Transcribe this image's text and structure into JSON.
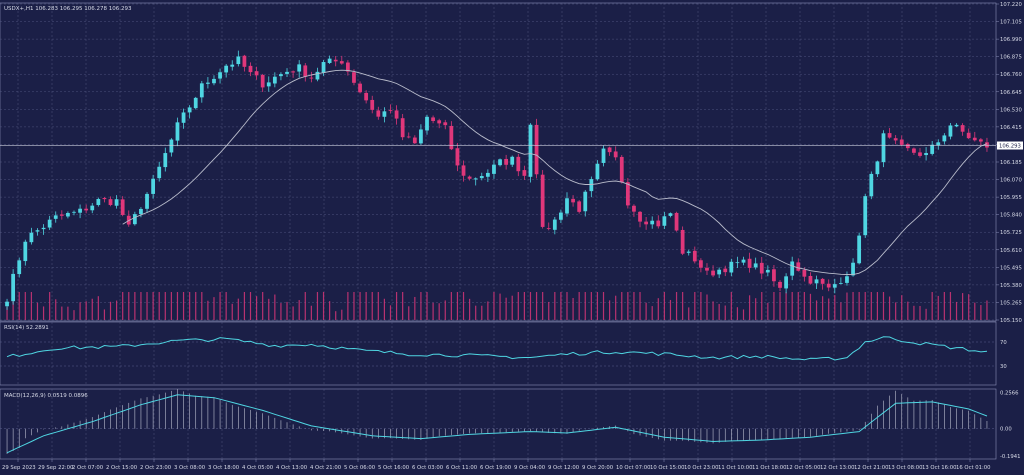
{
  "chart_data": {
    "type": "candlestick",
    "symbol_header": "USDX+,H1  106.283 106.295 106.278 106.293",
    "colors": {
      "background": "#1b1f47",
      "grid": "#5a5f8c",
      "bull": "#4fd6e2",
      "bear": "#e0377a",
      "ma": "#b9bccb",
      "volume": "#e0377a",
      "rsi": "#4fd6e2",
      "macd_signal": "#4fd6e2",
      "macd_hist": "#d8dbe8",
      "price_box": "#ffffff"
    },
    "price_axis": {
      "min": 105.15,
      "max": 107.22,
      "ticks": [
        "107.220",
        "107.105",
        "106.990",
        "106.875",
        "106.760",
        "106.645",
        "106.530",
        "106.415",
        "106.300",
        "106.185",
        "106.070",
        "105.955",
        "105.840",
        "105.725",
        "105.610",
        "105.495",
        "105.380",
        "105.265",
        "105.150"
      ],
      "current": "106.293",
      "current_value": 106.293
    },
    "x_labels": [
      "29 Sep 2023",
      "29 Sep 22:00",
      "2 Oct 07:00",
      "2 Oct 15:00",
      "2 Oct 23:00",
      "3 Oct 08:00",
      "3 Oct 18:00",
      "4 Oct 05:00",
      "4 Oct 13:00",
      "4 Oct 21:00",
      "5 Oct 06:00",
      "5 Oct 16:00",
      "6 Oct 03:00",
      "6 Oct 11:00",
      "6 Oct 19:00",
      "9 Oct 04:00",
      "9 Oct 12:00",
      "9 Oct 20:00",
      "10 Oct 07:00",
      "10 Oct 15:00",
      "10 Oct 23:00",
      "11 Oct 10:00",
      "11 Oct 18:00",
      "12 Oct 05:00",
      "12 Oct 13:00",
      "12 Oct 21:00",
      "13 Oct 08:00",
      "13 Oct 16:00",
      "16 Oct 01:00"
    ],
    "path_points": [
      [
        0,
        105.3
      ],
      [
        3,
        105.68
      ],
      [
        8,
        105.82
      ],
      [
        12,
        105.86
      ],
      [
        15,
        105.93
      ],
      [
        18,
        105.93
      ],
      [
        20,
        105.75
      ],
      [
        24,
        106.05
      ],
      [
        28,
        106.42
      ],
      [
        32,
        106.68
      ],
      [
        36,
        106.82
      ],
      [
        38,
        106.85
      ],
      [
        40,
        106.76
      ],
      [
        42,
        106.7
      ],
      [
        46,
        106.78
      ],
      [
        48,
        106.8
      ],
      [
        50,
        106.74
      ],
      [
        52,
        106.83
      ],
      [
        55,
        106.85
      ],
      [
        58,
        106.65
      ],
      [
        61,
        106.48
      ],
      [
        63,
        106.54
      ],
      [
        65,
        106.35
      ],
      [
        67,
        106.3
      ],
      [
        69,
        106.48
      ],
      [
        72,
        106.4
      ],
      [
        74,
        106.15
      ],
      [
        76,
        106.07
      ],
      [
        79,
        106.12
      ],
      [
        81,
        106.18
      ],
      [
        83,
        106.2
      ],
      [
        85,
        106.1
      ],
      [
        86,
        106.45
      ],
      [
        87,
        106.13
      ],
      [
        88,
        105.73
      ],
      [
        90,
        105.8
      ],
      [
        92,
        105.95
      ],
      [
        94,
        105.88
      ],
      [
        96,
        106.05
      ],
      [
        98,
        106.25
      ],
      [
        100,
        106.2
      ],
      [
        102,
        105.93
      ],
      [
        104,
        105.82
      ],
      [
        107,
        105.78
      ],
      [
        109,
        105.85
      ],
      [
        111,
        105.6
      ],
      [
        113,
        105.55
      ],
      [
        115,
        105.45
      ],
      [
        117,
        105.48
      ],
      [
        120,
        105.52
      ],
      [
        122,
        105.52
      ],
      [
        125,
        105.45
      ],
      [
        127,
        105.35
      ],
      [
        129,
        105.55
      ],
      [
        131,
        105.43
      ],
      [
        133,
        105.4
      ],
      [
        135,
        105.35
      ],
      [
        137,
        105.42
      ],
      [
        139,
        105.5
      ],
      [
        141,
        105.95
      ],
      [
        144,
        106.35
      ],
      [
        147,
        106.27
      ],
      [
        149,
        106.25
      ],
      [
        151,
        106.23
      ],
      [
        153,
        106.32
      ],
      [
        155,
        106.43
      ],
      [
        157,
        106.38
      ],
      [
        159,
        106.32
      ],
      [
        161,
        106.29
      ]
    ],
    "ma_period": 20,
    "rsi": {
      "label": "RSI(14) 52.2891",
      "ticks": [
        "70",
        "30"
      ],
      "levels": [
        70,
        30
      ],
      "path_points": [
        [
          0,
          45
        ],
        [
          8,
          60
        ],
        [
          18,
          62
        ],
        [
          28,
          72
        ],
        [
          36,
          75
        ],
        [
          44,
          64
        ],
        [
          50,
          66
        ],
        [
          58,
          56
        ],
        [
          66,
          50
        ],
        [
          74,
          48
        ],
        [
          86,
          44
        ],
        [
          92,
          50
        ],
        [
          100,
          54
        ],
        [
          108,
          50
        ],
        [
          116,
          44
        ],
        [
          124,
          46
        ],
        [
          132,
          40
        ],
        [
          138,
          44
        ],
        [
          141,
          70
        ],
        [
          144,
          78
        ],
        [
          150,
          68
        ],
        [
          156,
          60
        ],
        [
          161,
          53
        ]
      ]
    },
    "macd": {
      "label": "MACD(12,26,9) 0.0519 0.0896",
      "ticks": [
        "0.2566",
        "0.00",
        "-0.1941"
      ],
      "min": -0.2,
      "max": 0.26,
      "path_points": [
        [
          0,
          -0.17
        ],
        [
          6,
          -0.05
        ],
        [
          14,
          0.05
        ],
        [
          22,
          0.17
        ],
        [
          28,
          0.24
        ],
        [
          34,
          0.22
        ],
        [
          42,
          0.13
        ],
        [
          50,
          0.02
        ],
        [
          60,
          -0.05
        ],
        [
          68,
          -0.07
        ],
        [
          76,
          -0.04
        ],
        [
          86,
          -0.02
        ],
        [
          92,
          -0.03
        ],
        [
          100,
          0.01
        ],
        [
          108,
          -0.06
        ],
        [
          116,
          -0.09
        ],
        [
          124,
          -0.08
        ],
        [
          132,
          -0.06
        ],
        [
          140,
          -0.02
        ],
        [
          146,
          0.18
        ],
        [
          152,
          0.19
        ],
        [
          158,
          0.14
        ],
        [
          161,
          0.09
        ]
      ]
    }
  }
}
